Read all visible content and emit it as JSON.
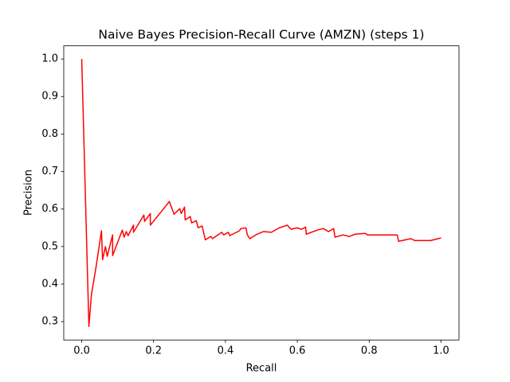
{
  "chart_data": {
    "type": "line",
    "title": "Naive Bayes Precision-Recall Curve (AMZN) (steps 1)",
    "x_label": "Recall",
    "y_label": "Precision",
    "xlim": [
      -0.05,
      1.05
    ],
    "ylim": [
      0.251,
      1.035
    ],
    "xticks": [
      {
        "value": 0,
        "label": "0.0"
      },
      0.2,
      0.4,
      0.6,
      0.8,
      {
        "value": 1,
        "label": "1.0"
      }
    ],
    "yticks": [
      0.3,
      0.4,
      0.5,
      0.6,
      0.7,
      0.8,
      0.9,
      {
        "value": 1,
        "label": "1.0"
      }
    ],
    "grid": false,
    "series": [
      {
        "color": "#ff0000",
        "x": [
          0,
          0.02,
          0.027,
          0.04,
          0.055,
          0.058,
          0.066,
          0.071,
          0.086,
          0.086,
          0.113,
          0.118,
          0.124,
          0.129,
          0.144,
          0.144,
          0.173,
          0.175,
          0.191,
          0.191,
          0.244,
          0.257,
          0.273,
          0.277,
          0.286,
          0.288,
          0.302,
          0.306,
          0.319,
          0.324,
          0.335,
          0.344,
          0.359,
          0.364,
          0.39,
          0.395,
          0.408,
          0.412,
          0.439,
          0.443,
          0.457,
          0.461,
          0.468,
          0.488,
          0.506,
          0.528,
          0.55,
          0.572,
          0.583,
          0.599,
          0.612,
          0.623,
          0.625,
          0.656,
          0.672,
          0.687,
          0.701,
          0.705,
          0.727,
          0.745,
          0.761,
          0.789,
          0.796,
          0.878,
          0.882,
          0.916,
          0.927,
          0.971,
          1.0
        ],
        "values": [
          1.0,
          0.287,
          0.372,
          0.446,
          0.542,
          0.465,
          0.5,
          0.474,
          0.531,
          0.476,
          0.544,
          0.525,
          0.54,
          0.529,
          0.557,
          0.538,
          0.584,
          0.567,
          0.588,
          0.557,
          0.62,
          0.586,
          0.601,
          0.588,
          0.605,
          0.571,
          0.58,
          0.563,
          0.569,
          0.55,
          0.555,
          0.518,
          0.527,
          0.521,
          0.538,
          0.531,
          0.538,
          0.529,
          0.542,
          0.548,
          0.55,
          0.531,
          0.521,
          0.533,
          0.54,
          0.538,
          0.55,
          0.557,
          0.546,
          0.55,
          0.546,
          0.552,
          0.533,
          0.544,
          0.548,
          0.54,
          0.548,
          0.525,
          0.531,
          0.527,
          0.533,
          0.535,
          0.531,
          0.531,
          0.514,
          0.521,
          0.516,
          0.516,
          0.523
        ]
      }
    ]
  }
}
